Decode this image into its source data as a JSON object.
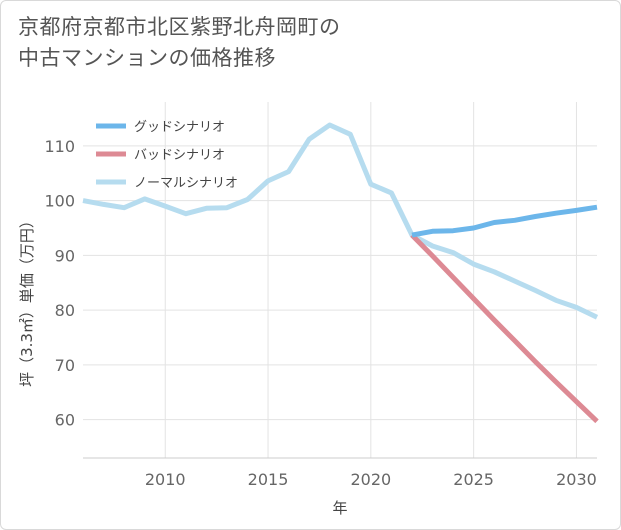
{
  "title": {
    "line1": "京都府京都市北区紫野北舟岡町の",
    "line2": "中古マンションの価格推移"
  },
  "chart_data": {
    "type": "line",
    "title": "京都府京都市北区紫野北舟岡町の中古マンションの価格推移",
    "xlabel": "年",
    "ylabel": "坪（3.3㎡）単価（万円）",
    "xlim": [
      2006,
      2031
    ],
    "ylim": [
      53,
      118
    ],
    "x_ticks": [
      2010,
      2015,
      2020,
      2025,
      2030
    ],
    "y_ticks": [
      60,
      70,
      80,
      90,
      100,
      110
    ],
    "grid": true,
    "legend_position": "top-left",
    "series": [
      {
        "name": "グッドシナリオ",
        "color": "#6cb6ea",
        "x": [
          2022,
          2023,
          2024,
          2025,
          2026,
          2027,
          2028,
          2029,
          2030,
          2031
        ],
        "y": [
          93.7,
          94.4,
          94.5,
          95.0,
          96.0,
          96.4,
          97.1,
          97.7,
          98.2,
          98.8
        ]
      },
      {
        "name": "バッドシナリオ",
        "color": "#dd8a94",
        "x": [
          2022,
          2023,
          2024,
          2025,
          2026,
          2027,
          2028,
          2029,
          2030,
          2031
        ],
        "y": [
          93.7,
          89.9,
          86.0,
          82.1,
          78.2,
          74.4,
          70.6,
          66.9,
          63.3,
          59.7
        ]
      },
      {
        "name": "ノーマルシナリオ",
        "color": "#b6dcef",
        "x": [
          2006,
          2007,
          2008,
          2009,
          2010,
          2011,
          2012,
          2013,
          2014,
          2015,
          2016,
          2017,
          2018,
          2019,
          2020,
          2021,
          2022,
          2023,
          2024,
          2025,
          2026,
          2027,
          2028,
          2029,
          2030,
          2031
        ],
        "y": [
          100.0,
          99.3,
          98.7,
          100.3,
          99.0,
          97.6,
          98.6,
          98.7,
          100.2,
          103.6,
          105.3,
          111.2,
          113.8,
          112.1,
          103.0,
          101.4,
          93.7,
          91.7,
          90.5,
          88.4,
          87.0,
          85.3,
          83.6,
          81.8,
          80.5,
          78.7
        ]
      }
    ]
  }
}
